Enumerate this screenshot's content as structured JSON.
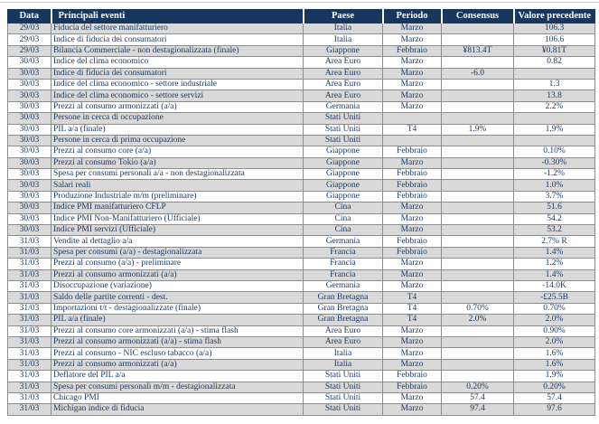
{
  "colors": {
    "header_bg": "#17375E",
    "header_text": "#FFFFFF",
    "row_alt_bg": "#D9D9D9",
    "row_bg": "#FFFFFF",
    "body_text": "#17375E",
    "grid_line": "#8C8C8C"
  },
  "table": {
    "columns": [
      "Data",
      "Principali eventi",
      "Paese",
      "Periodo",
      "Consensus",
      "Valore precedente"
    ],
    "rows": [
      [
        "29/03",
        "Fiducia del settore manifatturiero",
        "Italia",
        "Marzo",
        "",
        "106.3"
      ],
      [
        "29/03",
        "Indice di fiducia dei consumatori",
        "Italia",
        "Marzo",
        "",
        "106.6"
      ],
      [
        "29/03",
        "Bilancia Commerciale -  non destagionalizzata (finale)",
        "Giappone",
        "Febbraio",
        "¥813.4T",
        "¥0.81T"
      ],
      [
        "30/03",
        "Indice del clima economico",
        "Area Euro",
        "Marzo",
        "",
        "0.82"
      ],
      [
        "30/03",
        "Indice di fiducia dei consumatori",
        "Area Euro",
        "Marzo",
        "-6.0",
        ""
      ],
      [
        "30/03",
        "Indice del clima economico - settore industriale",
        "Area Euro",
        "Marzo",
        "",
        "1.3"
      ],
      [
        "30/03",
        "Indice del clima economico - settore servizi",
        "Area Euro",
        "Marzo",
        "",
        "13.8"
      ],
      [
        "30/03",
        "Prezzi al consumo armonizzati (a/a)",
        "Germania",
        "Marzo",
        "",
        "2.2%"
      ],
      [
        "30/03",
        "Persone in cerca di occupazione",
        "Stati Uniti",
        "",
        "",
        ""
      ],
      [
        "30/03",
        "PIL a/a (finale)",
        "Stati Uniti",
        "T4",
        "1.9%",
        "1.9%"
      ],
      [
        "30/03",
        "Persone in cerca di prima occupazione",
        "Stati Uniti",
        "",
        "",
        ""
      ],
      [
        "30/03",
        "Prezzi al consumo core (a/a)",
        "Giappone",
        "Febbraio",
        "",
        "0.10%"
      ],
      [
        "30/03",
        "Prezzi al consumo Tokio (a/a)",
        "Giappone",
        "Marzo",
        "",
        "-0.30%"
      ],
      [
        "30/03",
        "Spesa per consumi personali a/a - non destagionalizzata",
        "Giappone",
        "Febbraio",
        "",
        "-1.2%"
      ],
      [
        "30/03",
        "Salari reali",
        "Giappone",
        "Febbraio",
        "",
        "1.0%"
      ],
      [
        "30/03",
        "Produzione Industriale m/m (preliminare)",
        "Giappone",
        "Febbraio",
        "",
        "3.7%"
      ],
      [
        "30/03",
        "Indice PMI manifatturiero CFLP",
        "Cina",
        "Marzo",
        "",
        "51.6"
      ],
      [
        "30/03",
        "Indice PMI  Non-Manifatturiero (Ufficiale)",
        "Cina",
        "Marzo",
        "",
        "54.2"
      ],
      [
        "30/03",
        "Indice PMI  servizi (Ufficiale)",
        "Cina",
        "Marzo",
        "",
        "53.2"
      ],
      [
        "31/03",
        "Vendite al dettaglio a/a",
        "Germania",
        "Febbraio",
        "",
        "2.7% R"
      ],
      [
        "31/03",
        "Spesa per consumi  (a/a) - destagionalizzata",
        "Francia",
        "Febbraio",
        "",
        "1.4%"
      ],
      [
        "31/03",
        "Prezzi al consumo (a/a) - preliminare",
        "Francia",
        "Marzo",
        "",
        "1.2%"
      ],
      [
        "31/03",
        "Prezzi al consumo armonizzati (a/a)",
        "Francia",
        "Marzo",
        "",
        "1.4%"
      ],
      [
        "31/03",
        "Disoccupazione (variazione)",
        "Germania",
        "Marzo",
        "",
        "-14.0K"
      ],
      [
        "31/03",
        "Saldo delle partite correnti - dest.",
        "Gran Bretagna",
        "T4",
        "",
        "-£25.5B"
      ],
      [
        "31/03",
        "Importazioni t/t - destagionalizzate (finale)",
        "Gran Bretagna",
        "T4",
        "0.70%",
        "0.70%"
      ],
      [
        "31/03",
        "PIL a/a (finale)",
        "Gran Bretagna",
        "T4",
        "2.0%",
        "2.0%"
      ],
      [
        "31/03",
        "Prezzi al consumo core armonizzati (a/a) - stima flash",
        "Area Euro",
        "Marzo",
        "",
        "0.90%"
      ],
      [
        "31/03",
        "Prezzi al consumo armonizzati (a/a) - stima flash",
        "Area Euro",
        "Marzo",
        "",
        "2.0%"
      ],
      [
        "31/03",
        "Prezzi al consumo - NIC escluso tabacco (a/a)",
        "Italia",
        "Marzo",
        "",
        "1.6%"
      ],
      [
        "31/03",
        "Prezzi al consumo armonizzati (a/a)",
        "Italia",
        "Marzo",
        "",
        "1.6%"
      ],
      [
        "31/03",
        "Deflatore del PIL a/a",
        "Stati Uniti",
        "Febbraio",
        "",
        "1.9%"
      ],
      [
        "31/03",
        "Spesa per consumi personali m/m - destagionalizzata",
        "Stati Uniti",
        "Febbraio",
        "0.20%",
        "0.20%"
      ],
      [
        "31/03",
        "Chicago PMI",
        "Stati Uniti",
        "Marzo",
        "57.4",
        "57.4"
      ],
      [
        "31/03",
        "Michigan indice di fiducia",
        "Stati Uniti",
        "Marzo",
        "97.4",
        "97.6"
      ]
    ]
  }
}
